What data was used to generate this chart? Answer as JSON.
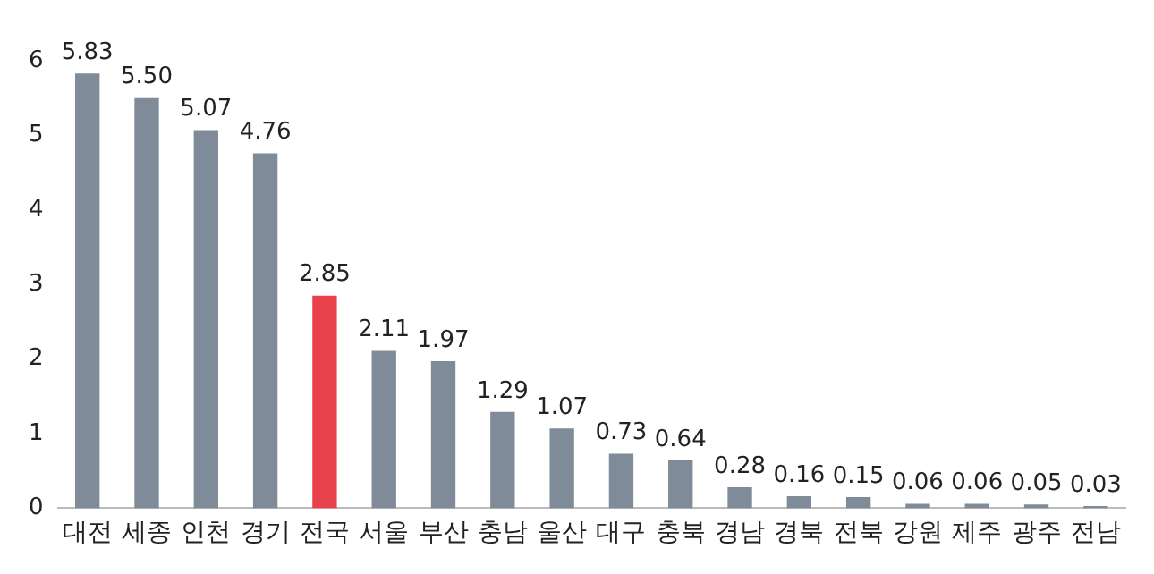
{
  "chart_data": {
    "type": "bar",
    "categories": [
      "대전",
      "세종",
      "인천",
      "경기",
      "전국",
      "서울",
      "부산",
      "충남",
      "울산",
      "대구",
      "충북",
      "경남",
      "경북",
      "전북",
      "강원",
      "제주",
      "광주",
      "전남"
    ],
    "values": [
      5.83,
      5.5,
      5.07,
      4.76,
      2.85,
      2.11,
      1.97,
      1.29,
      1.07,
      0.73,
      0.64,
      0.28,
      0.16,
      0.15,
      0.06,
      0.06,
      0.05,
      0.03
    ],
    "colors": [
      "#7f8b98",
      "#7f8b98",
      "#7f8b98",
      "#7f8b98",
      "#e8414b",
      "#7f8b98",
      "#7f8b98",
      "#7f8b98",
      "#7f8b98",
      "#7f8b98",
      "#7f8b98",
      "#7f8b98",
      "#7f8b98",
      "#7f8b98",
      "#7f8b98",
      "#7f8b98",
      "#7f8b98",
      "#7f8b98"
    ],
    "value_labels": [
      "5.83",
      "5.50",
      "5.07",
      "4.76",
      "2.85",
      "2.11",
      "1.97",
      "1.29",
      "1.07",
      "0.73",
      "0.64",
      "0.28",
      "0.16",
      "0.15",
      "0.06",
      "0.06",
      "0.05",
      "0.03"
    ],
    "ylim": [
      0,
      6
    ],
    "yticks": [
      0,
      1,
      2,
      3,
      4,
      5,
      6
    ],
    "grid": false,
    "legend": false
  }
}
